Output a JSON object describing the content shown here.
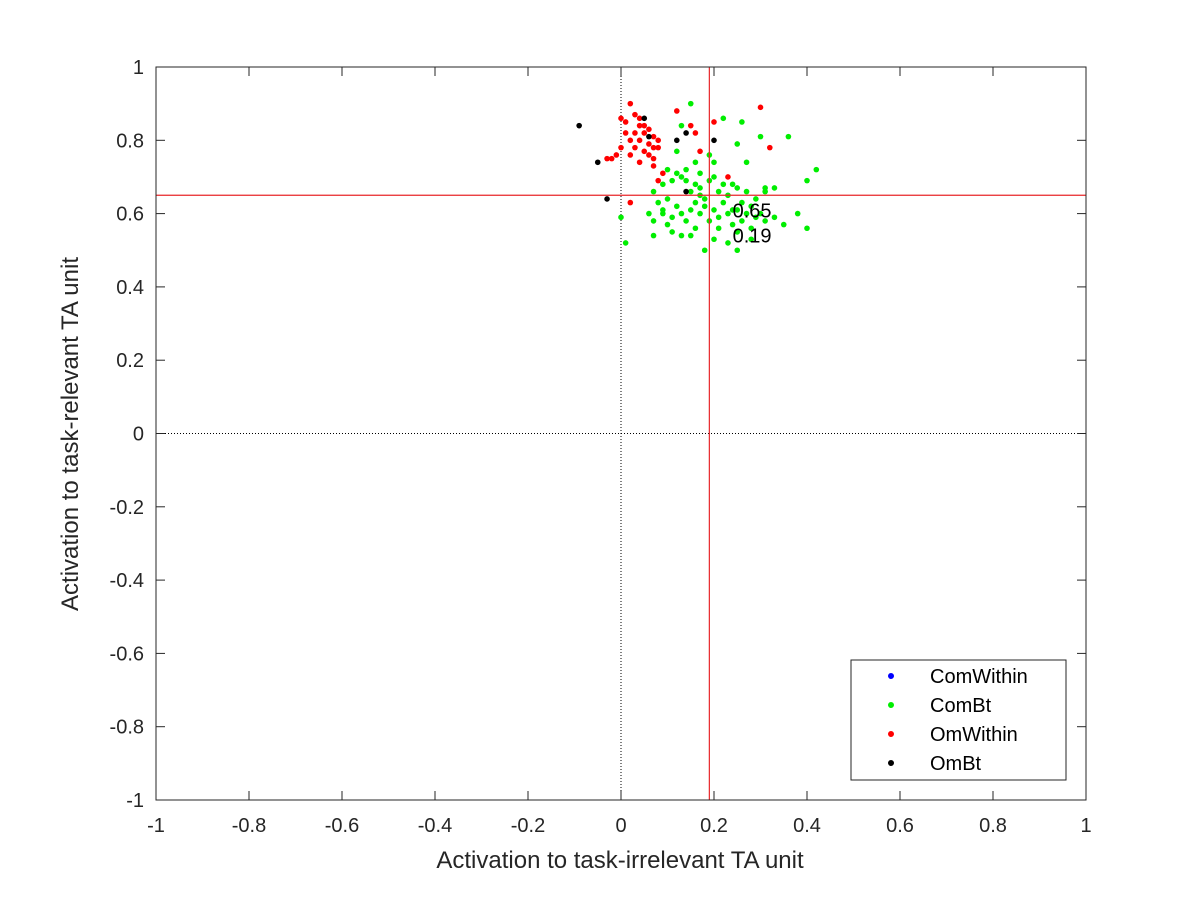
{
  "chart_data": {
    "type": "scatter",
    "title": "",
    "xlabel": "Activation to task-irrelevant TA unit",
    "ylabel": "Activation to task-relevant TA unit",
    "xlim": [
      -1,
      1
    ],
    "ylim": [
      -1,
      1
    ],
    "xticks": [
      "-1",
      "-0.8",
      "-0.6",
      "-0.4",
      "-0.2",
      "0",
      "0.2",
      "0.4",
      "0.6",
      "0.8",
      "1"
    ],
    "yticks": [
      "-1",
      "-0.8",
      "-0.6",
      "-0.4",
      "-0.2",
      "0",
      "0.2",
      "0.4",
      "0.6",
      "0.8",
      "1"
    ],
    "grid": false,
    "legend_position": "bottom-right",
    "reference_lines": {
      "dotted_zero_lines": {
        "x": 0,
        "y": 0,
        "color": "#000000"
      },
      "mean_lines": {
        "x": 0.19,
        "y": 0.65,
        "color": "#e8262a"
      }
    },
    "annotations": [
      "0.65",
      "0.19"
    ],
    "series": [
      {
        "name": "ComWithin",
        "color": "#0000ff",
        "points": []
      },
      {
        "name": "ComBt",
        "color": "#00ee00",
        "points": [
          [
            0.15,
            0.9
          ],
          [
            0.22,
            0.86
          ],
          [
            0.13,
            0.84
          ],
          [
            0.26,
            0.85
          ],
          [
            0.3,
            0.81
          ],
          [
            0.36,
            0.81
          ],
          [
            0.25,
            0.79
          ],
          [
            0.12,
            0.77
          ],
          [
            0.16,
            0.74
          ],
          [
            0.19,
            0.76
          ],
          [
            0.2,
            0.74
          ],
          [
            0.27,
            0.74
          ],
          [
            0.4,
            0.69
          ],
          [
            0.42,
            0.72
          ],
          [
            0.33,
            0.67
          ],
          [
            0.31,
            0.66
          ],
          [
            0.07,
            0.66
          ],
          [
            0.08,
            0.63
          ],
          [
            0.09,
            0.68
          ],
          [
            0.1,
            0.64
          ],
          [
            0.11,
            0.69
          ],
          [
            0.12,
            0.71
          ],
          [
            0.13,
            0.7
          ],
          [
            0.14,
            0.72
          ],
          [
            0.14,
            0.69
          ],
          [
            0.15,
            0.66
          ],
          [
            0.16,
            0.68
          ],
          [
            0.17,
            0.71
          ],
          [
            0.17,
            0.67
          ],
          [
            0.18,
            0.64
          ],
          [
            0.19,
            0.69
          ],
          [
            0.2,
            0.7
          ],
          [
            0.21,
            0.66
          ],
          [
            0.22,
            0.68
          ],
          [
            0.23,
            0.65
          ],
          [
            0.24,
            0.68
          ],
          [
            0.25,
            0.67
          ],
          [
            0.26,
            0.63
          ],
          [
            0.27,
            0.66
          ],
          [
            0.28,
            0.62
          ],
          [
            0.29,
            0.64
          ],
          [
            0.3,
            0.6
          ],
          [
            0.06,
            0.6
          ],
          [
            0.07,
            0.58
          ],
          [
            0.09,
            0.6
          ],
          [
            0.1,
            0.57
          ],
          [
            0.11,
            0.59
          ],
          [
            0.12,
            0.62
          ],
          [
            0.13,
            0.6
          ],
          [
            0.14,
            0.58
          ],
          [
            0.15,
            0.61
          ],
          [
            0.16,
            0.63
          ],
          [
            0.17,
            0.6
          ],
          [
            0.18,
            0.62
          ],
          [
            0.19,
            0.58
          ],
          [
            0.2,
            0.61
          ],
          [
            0.21,
            0.59
          ],
          [
            0.22,
            0.63
          ],
          [
            0.23,
            0.6
          ],
          [
            0.24,
            0.57
          ],
          [
            0.25,
            0.61
          ],
          [
            0.26,
            0.58
          ],
          [
            0.27,
            0.6
          ],
          [
            0.28,
            0.56
          ],
          [
            0.29,
            0.59
          ],
          [
            0.31,
            0.58
          ],
          [
            0.33,
            0.59
          ],
          [
            0.35,
            0.57
          ],
          [
            0.38,
            0.6
          ],
          [
            0.4,
            0.56
          ],
          [
            0.0,
            0.59
          ],
          [
            0.01,
            0.52
          ],
          [
            0.07,
            0.54
          ],
          [
            0.11,
            0.55
          ],
          [
            0.13,
            0.54
          ],
          [
            0.15,
            0.54
          ],
          [
            0.18,
            0.5
          ],
          [
            0.2,
            0.53
          ],
          [
            0.23,
            0.52
          ],
          [
            0.25,
            0.5
          ],
          [
            0.25,
            0.55
          ],
          [
            0.28,
            0.53
          ],
          [
            0.1,
            0.72
          ],
          [
            0.16,
            0.56
          ],
          [
            0.21,
            0.56
          ],
          [
            0.09,
            0.61
          ],
          [
            0.17,
            0.65
          ],
          [
            0.24,
            0.61
          ],
          [
            0.31,
            0.67
          ]
        ]
      },
      {
        "name": "OmWithin",
        "color": "#ff0000",
        "points": [
          [
            0.02,
            0.9
          ],
          [
            0.0,
            0.86
          ],
          [
            0.01,
            0.85
          ],
          [
            0.03,
            0.87
          ],
          [
            0.04,
            0.86
          ],
          [
            0.05,
            0.84
          ],
          [
            0.03,
            0.82
          ],
          [
            0.02,
            0.8
          ],
          [
            0.04,
            0.8
          ],
          [
            0.05,
            0.82
          ],
          [
            0.06,
            0.79
          ],
          [
            0.07,
            0.81
          ],
          [
            0.08,
            0.8
          ],
          [
            0.08,
            0.78
          ],
          [
            0.06,
            0.76
          ],
          [
            0.07,
            0.75
          ],
          [
            0.05,
            0.77
          ],
          [
            0.03,
            0.78
          ],
          [
            0.02,
            0.76
          ],
          [
            0.0,
            0.78
          ],
          [
            -0.01,
            0.76
          ],
          [
            -0.02,
            0.75
          ],
          [
            -0.03,
            0.75
          ],
          [
            0.01,
            0.82
          ],
          [
            0.04,
            0.84
          ],
          [
            0.06,
            0.83
          ],
          [
            0.07,
            0.73
          ],
          [
            0.08,
            0.69
          ],
          [
            0.09,
            0.71
          ],
          [
            0.12,
            0.88
          ],
          [
            0.15,
            0.84
          ],
          [
            0.16,
            0.82
          ],
          [
            0.2,
            0.85
          ],
          [
            0.17,
            0.77
          ],
          [
            0.3,
            0.89
          ],
          [
            0.32,
            0.78
          ],
          [
            0.23,
            0.7
          ],
          [
            0.02,
            0.63
          ],
          [
            0.04,
            0.74
          ],
          [
            0.07,
            0.78
          ]
        ]
      },
      {
        "name": "OmBt",
        "color": "#000000",
        "points": [
          [
            -0.09,
            0.84
          ],
          [
            0.05,
            0.86
          ],
          [
            0.06,
            0.81
          ],
          [
            0.12,
            0.8
          ],
          [
            0.14,
            0.82
          ],
          [
            0.2,
            0.8
          ],
          [
            -0.05,
            0.74
          ],
          [
            -0.03,
            0.64
          ],
          [
            0.14,
            0.66
          ]
        ]
      }
    ]
  }
}
